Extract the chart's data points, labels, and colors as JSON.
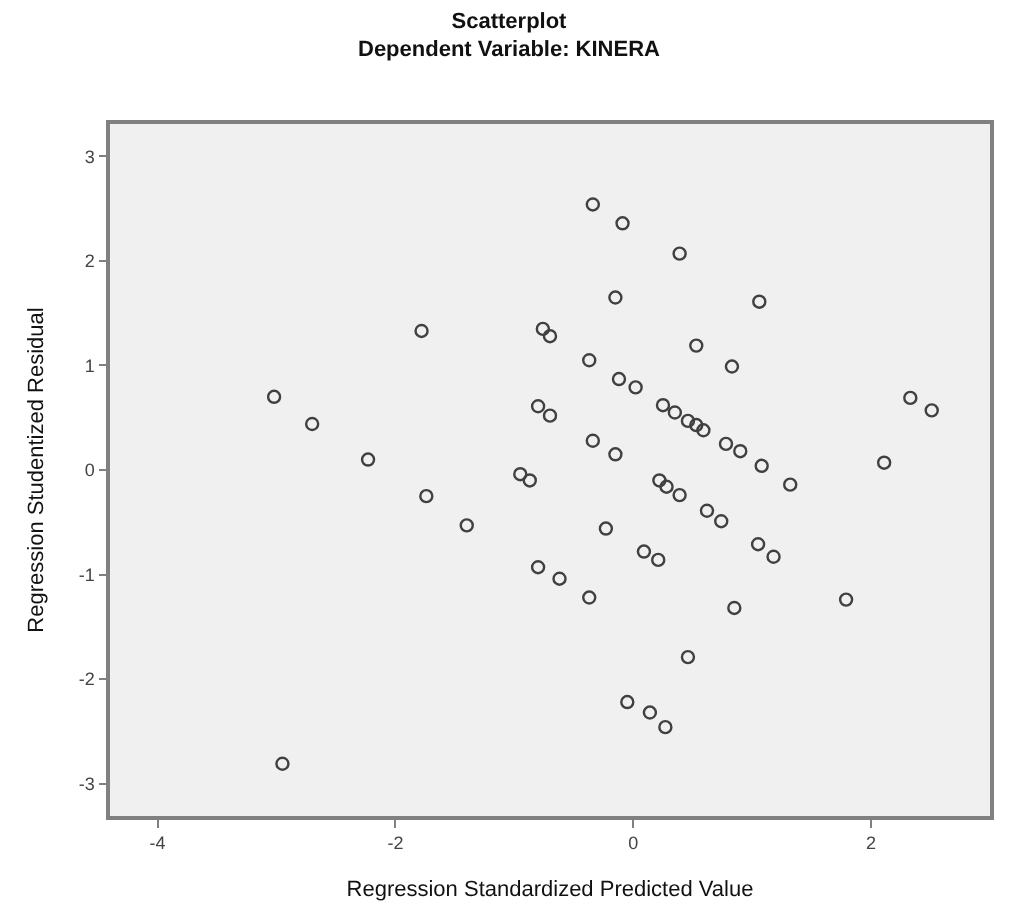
{
  "chart_data": {
    "type": "scatter",
    "title": "Scatterplot",
    "subtitle": "Dependent Variable: KINERA",
    "xlabel": "Regression Standardized Predicted Value",
    "ylabel": "Regression Studentized Residual",
    "x": [
      -3.02,
      -2.7,
      -2.23,
      -1.78,
      -0.76,
      -0.7,
      -0.8,
      -0.7,
      -1.74,
      -0.95,
      -0.87,
      -1.4,
      -0.8,
      -2.95,
      -0.34,
      -0.09,
      0.39,
      -0.15,
      1.06,
      0.53,
      0.83,
      -0.37,
      -0.12,
      0.02,
      0.25,
      0.35,
      0.46,
      0.53,
      0.59,
      0.78,
      0.9,
      1.08,
      1.32,
      2.11,
      2.33,
      2.51,
      -0.34,
      -0.15,
      0.22,
      0.28,
      0.39,
      0.62,
      0.74,
      -0.23,
      0.09,
      0.21,
      1.05,
      1.18,
      -0.62,
      -0.37,
      0.85,
      1.79,
      0.46,
      -0.05,
      0.14,
      0.27
    ],
    "values": [
      0.7,
      0.44,
      0.1,
      1.33,
      1.35,
      1.28,
      0.61,
      0.52,
      -0.25,
      -0.04,
      -0.1,
      -0.53,
      -0.93,
      -2.81,
      2.54,
      2.36,
      2.07,
      1.65,
      1.61,
      1.19,
      0.99,
      1.05,
      0.87,
      0.79,
      0.62,
      0.55,
      0.47,
      0.43,
      0.38,
      0.25,
      0.18,
      0.04,
      -0.14,
      0.07,
      0.69,
      0.57,
      0.28,
      0.15,
      -0.1,
      -0.16,
      -0.24,
      -0.39,
      -0.49,
      -0.56,
      -0.78,
      -0.86,
      -0.71,
      -0.83,
      -1.04,
      -1.22,
      -1.32,
      -1.24,
      -1.79,
      -2.22,
      -2.32,
      -2.46
    ],
    "color": "#404040",
    "marker": "circle",
    "grid": false,
    "legend": false,
    "xlim": [
      -4.4,
      3.0
    ],
    "ylim": [
      -3.31,
      3.31
    ],
    "xticks": [
      -4,
      -2,
      0,
      2
    ],
    "yticks": [
      -3,
      -2,
      -1,
      0,
      1,
      2,
      3
    ]
  }
}
